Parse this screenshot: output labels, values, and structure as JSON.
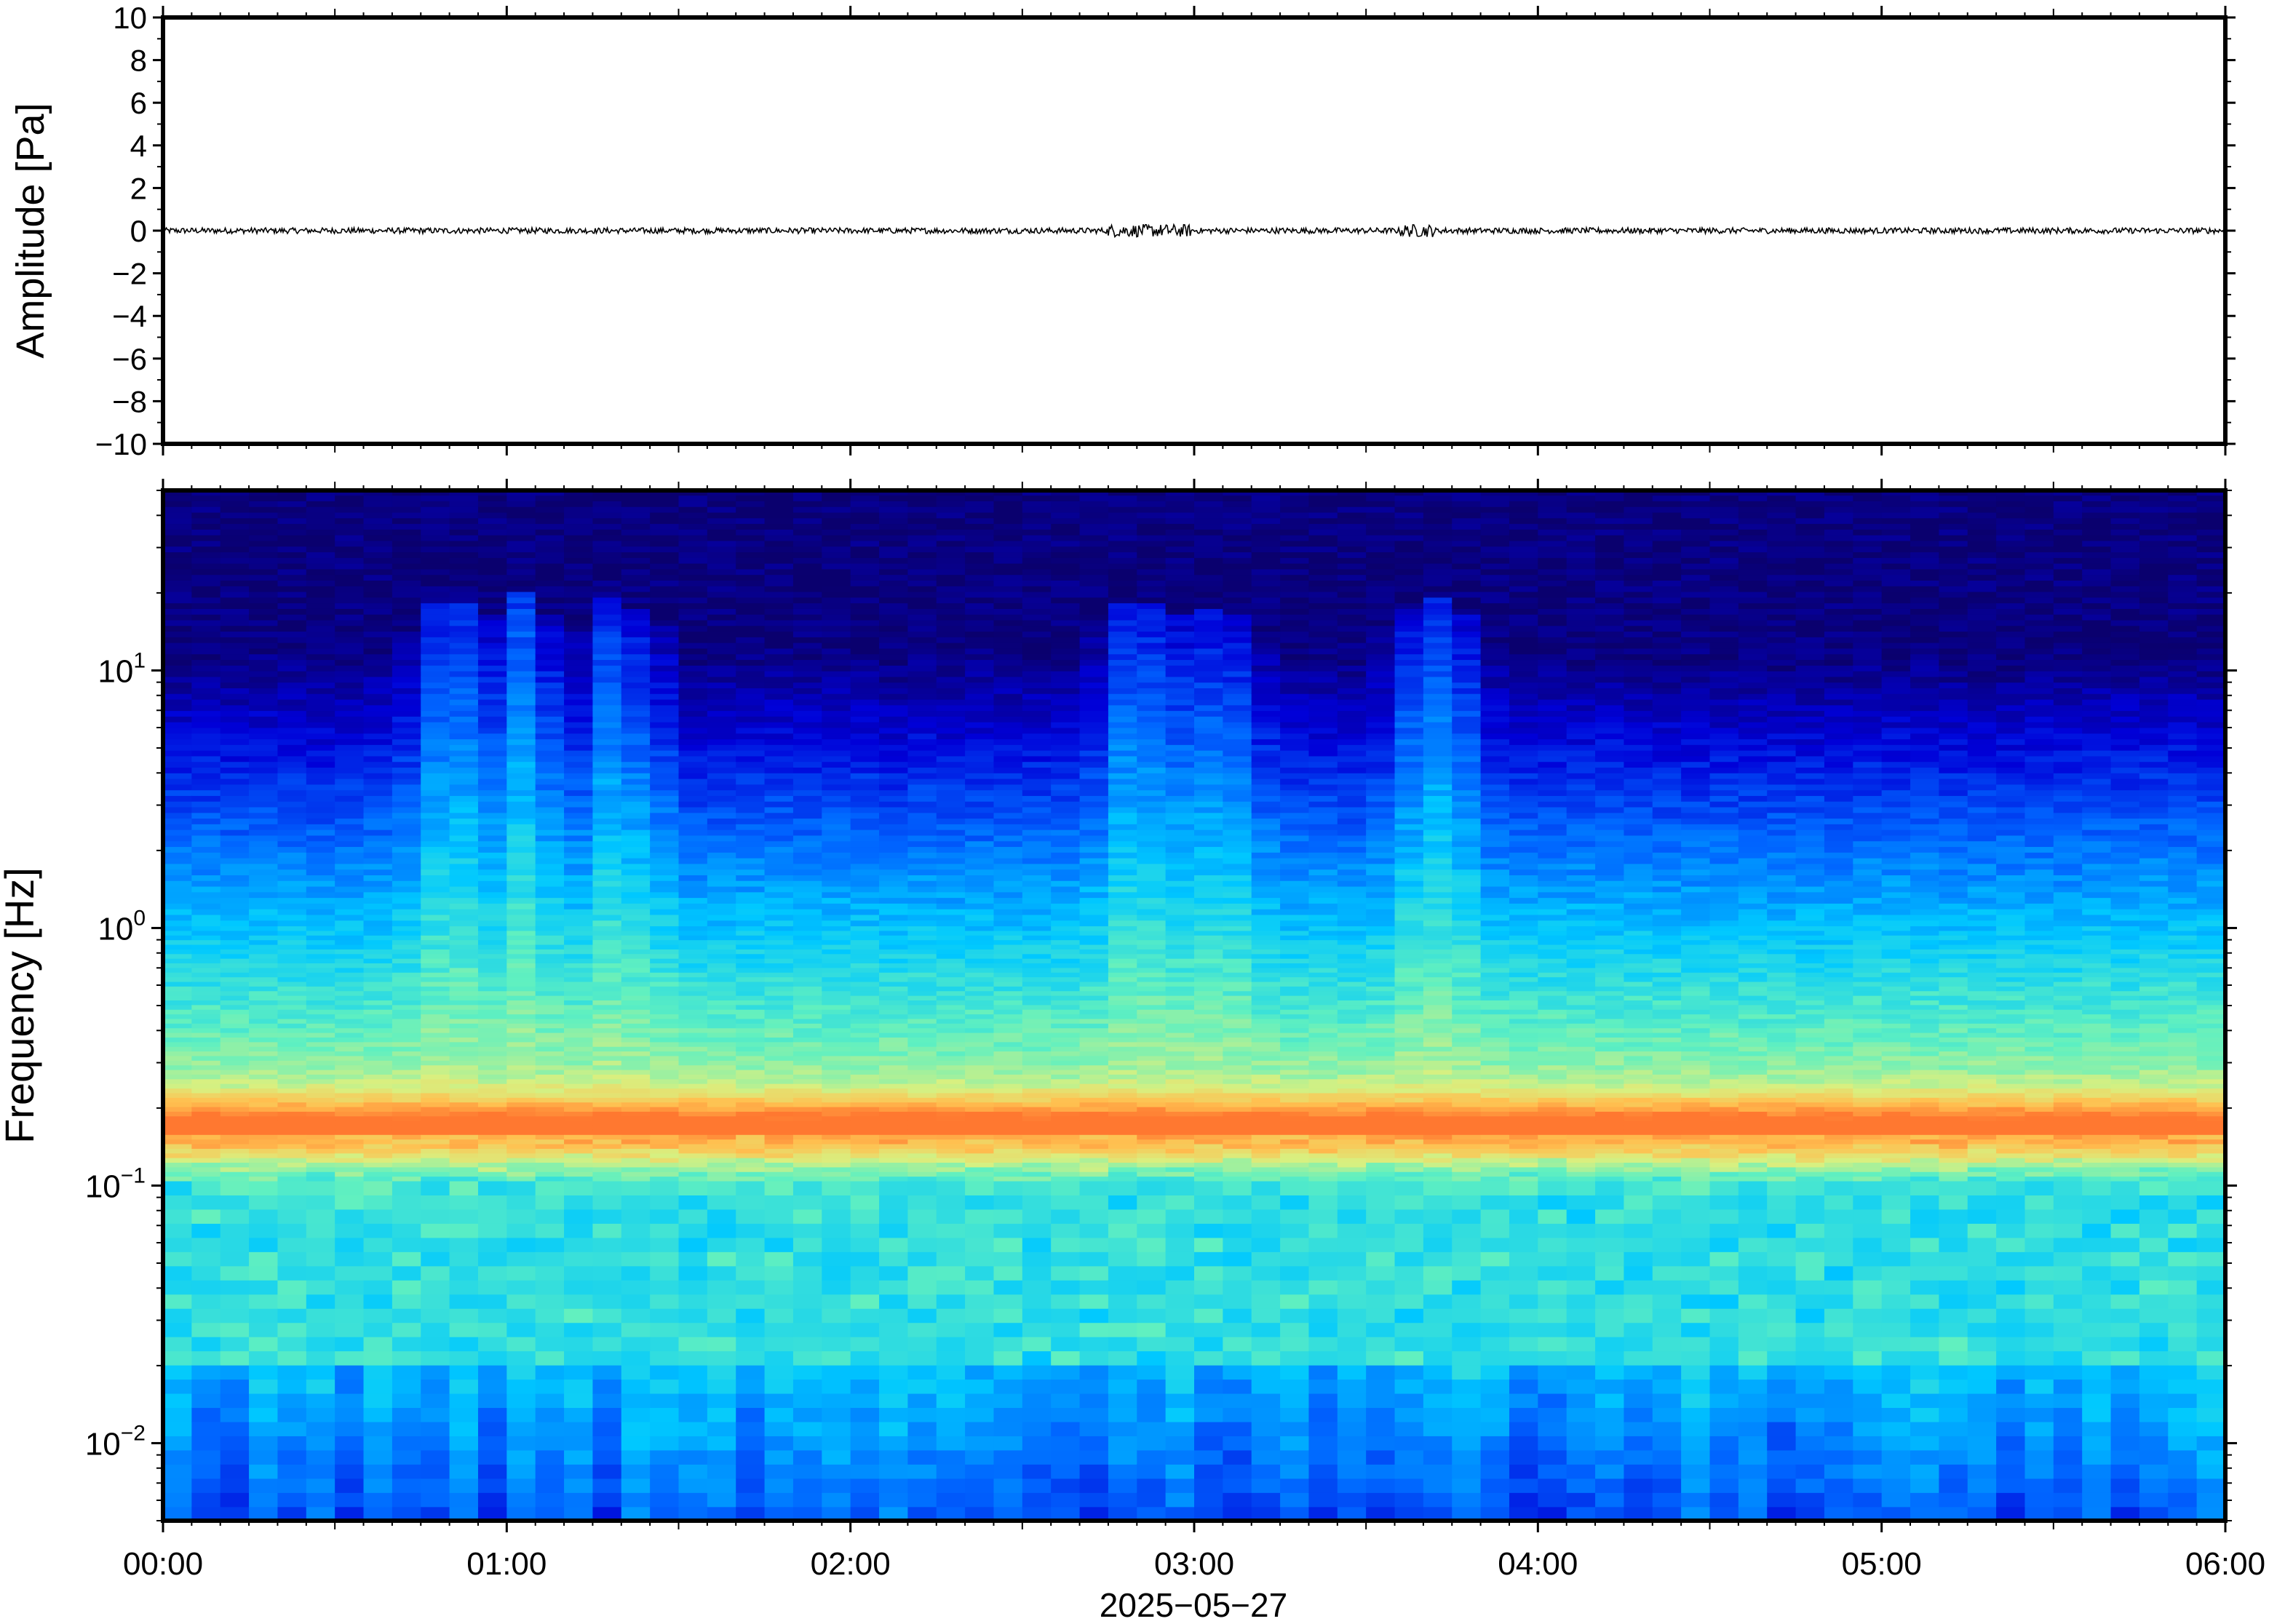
{
  "figure": {
    "date_label": "2025−05−27"
  },
  "chart_data": [
    {
      "type": "line",
      "panel": "waveform",
      "ylabel": "Amplitude [Pa]",
      "xlabel": "",
      "xlim": [
        "00:00",
        "06:00"
      ],
      "ylim": [
        -10,
        10
      ],
      "y_ticks": [
        10,
        8,
        6,
        4,
        2,
        0,
        -2,
        -4,
        -6,
        -8,
        -10
      ],
      "y_tick_labels": [
        "10",
        "8",
        "6",
        "4",
        "2",
        "0",
        "−2",
        "−4",
        "−6",
        "−8",
        "−10"
      ],
      "series": [
        {
          "color": "#000000",
          "description_values": "noise trace centered on 0 Pa, peak amplitude about 0.3 Pa",
          "baseline": 0,
          "max_abs_amplitude": 0.3
        }
      ],
      "grid": false
    },
    {
      "type": "heatmap",
      "panel": "spectrogram",
      "ylabel": "Frequency [Hz]",
      "xlabel": "2025−05−27",
      "x_ticks": [
        "00:00",
        "01:00",
        "02:00",
        "03:00",
        "04:00",
        "05:00",
        "06:00"
      ],
      "y_scale": "log",
      "ylim": [
        0.005,
        50
      ],
      "y_ticks": [
        10,
        1,
        0.1,
        0.01
      ],
      "y_tick_labels": [
        {
          "base": "10",
          "exp": "1"
        },
        {
          "base": "10",
          "exp": "0"
        },
        {
          "base": "10",
          "exp": "−1"
        },
        {
          "base": "10",
          "exp": "−2"
        }
      ],
      "colormap": "jet",
      "colormap_stops": [
        "#0a006e",
        "#0000d8",
        "#0064ff",
        "#00c8ff",
        "#60f0c0",
        "#d8f080",
        "#ffc050",
        "#ff7830"
      ],
      "dominant_band_hz": [
        0.12,
        0.25
      ],
      "dominant_band_peak_hz": 0.16,
      "high_energy_bursts_hours": [
        0.85,
        1.05,
        1.33,
        2.85,
        3.05,
        3.7
      ],
      "grid": false
    }
  ]
}
